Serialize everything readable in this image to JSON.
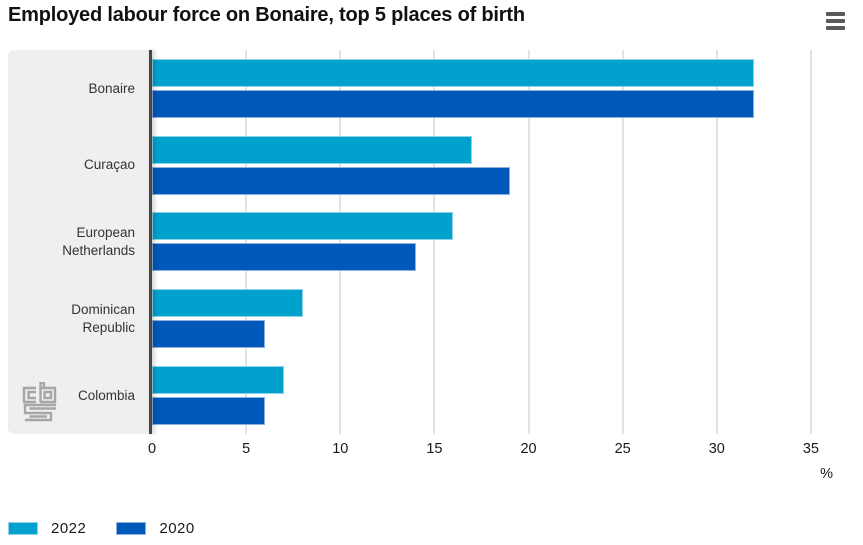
{
  "header": {
    "title": "Employed labour force on Bonaire, top 5 places of birth"
  },
  "chart_data": {
    "type": "bar",
    "orientation": "horizontal",
    "title": "Employed labour force on Bonaire, top 5 places of birth",
    "categories": [
      "Bonaire",
      "Curaçao",
      "European Netherlands",
      "Dominican Republic",
      "Colombia"
    ],
    "series": [
      {
        "name": "2022",
        "color": "#00a1cd",
        "edge_color": "#8ed2e9",
        "values": [
          32,
          17,
          16,
          8,
          7
        ]
      },
      {
        "name": "2020",
        "color": "#0058b8",
        "edge_color": "#8db0de",
        "values": [
          32,
          19,
          14,
          6,
          6
        ]
      }
    ],
    "x_ticks": [
      0,
      5,
      10,
      15,
      20,
      25,
      30,
      35
    ],
    "xlim": [
      0,
      37.5
    ],
    "x_unit": "%",
    "grid": true,
    "legend_position": "bottom-left",
    "branding": "cbs-logo"
  },
  "colors": {
    "panel_bg": "#efefef",
    "axis_line": "#474747",
    "gridline": "#e3e3e3",
    "title_text": "#111111",
    "label_text": "#333333",
    "tick_text": "#1a1a1a",
    "menu_icon": "#59595b",
    "logo": "#a6a6a6"
  }
}
